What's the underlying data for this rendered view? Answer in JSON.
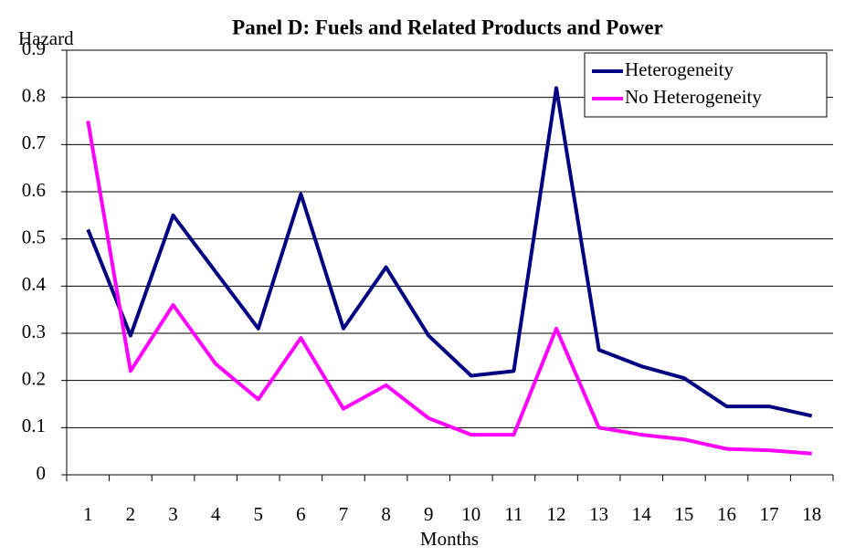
{
  "chart_data": {
    "type": "line",
    "title": "Panel D: Fuels and Related Products and Power",
    "y_label": "Hazard",
    "x_label": "Months",
    "categories": [
      "1",
      "2",
      "3",
      "4",
      "5",
      "6",
      "7",
      "8",
      "9",
      "10",
      "11",
      "12",
      "13",
      "14",
      "15",
      "16",
      "17",
      "18"
    ],
    "series": [
      {
        "name": "Heterogeneity",
        "color": "#000080",
        "values": [
          0.52,
          0.295,
          0.55,
          0.43,
          0.31,
          0.595,
          0.31,
          0.44,
          0.295,
          0.21,
          0.22,
          0.82,
          0.265,
          0.23,
          0.205,
          0.145,
          0.145,
          0.125
        ]
      },
      {
        "name": "No Heterogeneity",
        "color": "#ff00ff",
        "values": [
          0.75,
          0.22,
          0.36,
          0.235,
          0.16,
          0.29,
          0.14,
          0.19,
          0.12,
          0.085,
          0.085,
          0.31,
          0.1,
          0.085,
          0.075,
          0.055,
          0.052,
          0.045
        ]
      }
    ],
    "ylim": [
      0,
      0.9
    ],
    "yticks": [
      0,
      0.1,
      0.2,
      0.3,
      0.4,
      0.5,
      0.6,
      0.7,
      0.8,
      0.9
    ],
    "grid": true,
    "legend": "upper right"
  }
}
